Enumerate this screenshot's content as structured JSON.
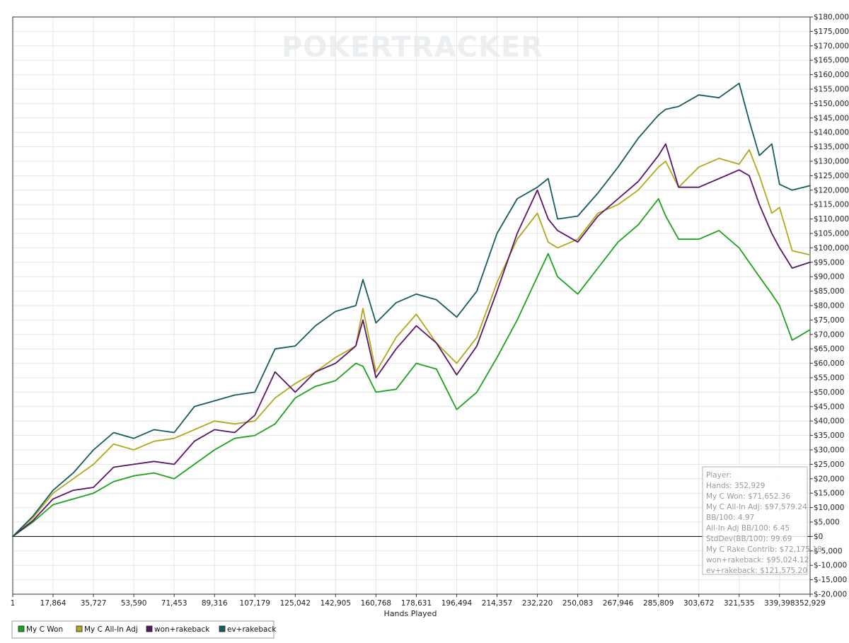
{
  "watermark": "POKERTRACKER",
  "colors": {
    "won": "#1ca31c",
    "allin": "#b0a81c",
    "rakeback": "#5a1466",
    "ev": "#175b5d",
    "grid": "#e6e6e6",
    "zero_line": "#000000"
  },
  "stats": {
    "lines": [
      "Player:",
      "Hands: 352,929",
      "My C Won: $71,652.36",
      "My C All-In Adj: $97,579.24",
      "BB/100: 4.97",
      "All-In Adj BB/100: 6.45",
      "StdDev(BB/100): 99.69",
      "My C Rake Contrib: $72,175.18",
      "won+rakeback: $95,024.12",
      "ev+rakeback: $121,575.20"
    ]
  },
  "legend": [
    {
      "label": "My C Won",
      "color": "#1ca31c"
    },
    {
      "label": "My C All-In Adj",
      "color": "#b0a81c"
    },
    {
      "label": "won+rakeback",
      "color": "#5a1466"
    },
    {
      "label": "ev+rakeback",
      "color": "#175b5d"
    }
  ],
  "chart_data": {
    "type": "line",
    "title": "",
    "xlabel": "Hands Played",
    "ylabel": "",
    "xlim": [
      1,
      352929
    ],
    "ylim": [
      -20000,
      180000
    ],
    "x_ticks": [
      1,
      17864,
      35727,
      53590,
      71453,
      89316,
      107179,
      125042,
      142905,
      160768,
      178631,
      196494,
      214357,
      232220,
      250083,
      267946,
      285809,
      303672,
      321535,
      339398,
      352929
    ],
    "x_tick_labels": [
      "1",
      "17,864",
      "35,727",
      "53,590",
      "71,453",
      "89,316",
      "107,179",
      "125,042",
      "142,905",
      "160,768",
      "178,631",
      "196,494",
      "214,357",
      "232,220",
      "250,083",
      "267,946",
      "285,809",
      "303,672",
      "321,535",
      "339,398",
      "352,929"
    ],
    "y_ticks": [
      -20000,
      -15000,
      -10000,
      -5000,
      0,
      5000,
      10000,
      15000,
      20000,
      25000,
      30000,
      35000,
      40000,
      45000,
      50000,
      55000,
      60000,
      65000,
      70000,
      75000,
      80000,
      85000,
      90000,
      95000,
      100000,
      105000,
      110000,
      115000,
      120000,
      125000,
      130000,
      135000,
      140000,
      145000,
      150000,
      155000,
      160000,
      165000,
      170000,
      175000,
      180000
    ],
    "y_tick_labels": [
      "$-20,000",
      "$-15,000",
      "$-10,000",
      "$-5,000",
      "$0",
      "$5,000",
      "$10,000",
      "$15,000",
      "$20,000",
      "$25,000",
      "$30,000",
      "$35,000",
      "$40,000",
      "$45,000",
      "$50,000",
      "$55,000",
      "$60,000",
      "$65,000",
      "$70,000",
      "$75,000",
      "$80,000",
      "$85,000",
      "$90,000",
      "$95,000",
      "$100,000",
      "$105,000",
      "$110,000",
      "$115,000",
      "$120,000",
      "$125,000",
      "$130,000",
      "$135,000",
      "$140,000",
      "$145,000",
      "$150,000",
      "$155,000",
      "$160,000",
      "$165,000",
      "$170,000",
      "$175,000",
      "$180,000"
    ],
    "grid": true,
    "legend_position": "bottom-left",
    "x": [
      1,
      8932,
      17864,
      26795,
      35727,
      44658,
      53590,
      62521,
      71453,
      80384,
      89316,
      98247,
      107179,
      116110,
      125042,
      133973,
      142905,
      151836,
      155000,
      160768,
      169700,
      178631,
      187562,
      196494,
      205425,
      214357,
      223288,
      232220,
      237000,
      241151,
      250083,
      259014,
      267946,
      276877,
      285809,
      289000,
      294740,
      303672,
      312603,
      321535,
      326000,
      330466,
      336000,
      339398,
      345000,
      352929
    ],
    "series": [
      {
        "name": "My C Won",
        "color": "#1ca31c",
        "values": [
          0,
          5000,
          11000,
          13000,
          15000,
          19000,
          21000,
          22000,
          20000,
          25000,
          30000,
          34000,
          35000,
          39000,
          48000,
          52000,
          54000,
          60000,
          59000,
          50000,
          51000,
          60000,
          58000,
          44000,
          50000,
          62000,
          75000,
          90000,
          98000,
          90000,
          84000,
          93000,
          102000,
          108000,
          117000,
          111000,
          103000,
          103000,
          106000,
          100000,
          95000,
          90000,
          84000,
          80000,
          68000,
          71650
        ]
      },
      {
        "name": "My C All-In Adj",
        "color": "#b0a81c",
        "values": [
          0,
          6500,
          15000,
          20000,
          25000,
          32000,
          30000,
          33000,
          34000,
          37000,
          40000,
          39000,
          40000,
          48000,
          53000,
          57000,
          62000,
          66000,
          79000,
          57000,
          69000,
          77000,
          67000,
          60000,
          69000,
          88000,
          103000,
          112000,
          102000,
          100000,
          103000,
          112000,
          115000,
          120000,
          128000,
          130000,
          121000,
          128000,
          131000,
          129000,
          134000,
          125000,
          112000,
          114000,
          99000,
          97580
        ]
      },
      {
        "name": "won+rakeback",
        "color": "#5a1466",
        "values": [
          0,
          5500,
          13000,
          16000,
          17000,
          24000,
          25000,
          26000,
          25000,
          33000,
          37000,
          36000,
          42000,
          57000,
          50000,
          57000,
          60000,
          66000,
          75000,
          55000,
          65000,
          73000,
          67000,
          56000,
          66000,
          85000,
          105000,
          120000,
          110000,
          106000,
          102000,
          111000,
          117000,
          123000,
          132000,
          136000,
          121000,
          121000,
          124000,
          127000,
          125000,
          115000,
          105000,
          100000,
          93000,
          95020
        ]
      },
      {
        "name": "ev+rakeback",
        "color": "#175b5d",
        "values": [
          0,
          7000,
          16000,
          22000,
          30000,
          36000,
          34000,
          37000,
          36000,
          45000,
          47000,
          49000,
          50000,
          65000,
          66000,
          73000,
          78000,
          80000,
          89000,
          74000,
          81000,
          84000,
          82000,
          76000,
          85000,
          105000,
          117000,
          121000,
          124000,
          110000,
          111000,
          119000,
          128000,
          138000,
          146000,
          148000,
          149000,
          153000,
          152000,
          157000,
          144000,
          132000,
          136000,
          122000,
          120000,
          121575
        ]
      }
    ]
  }
}
